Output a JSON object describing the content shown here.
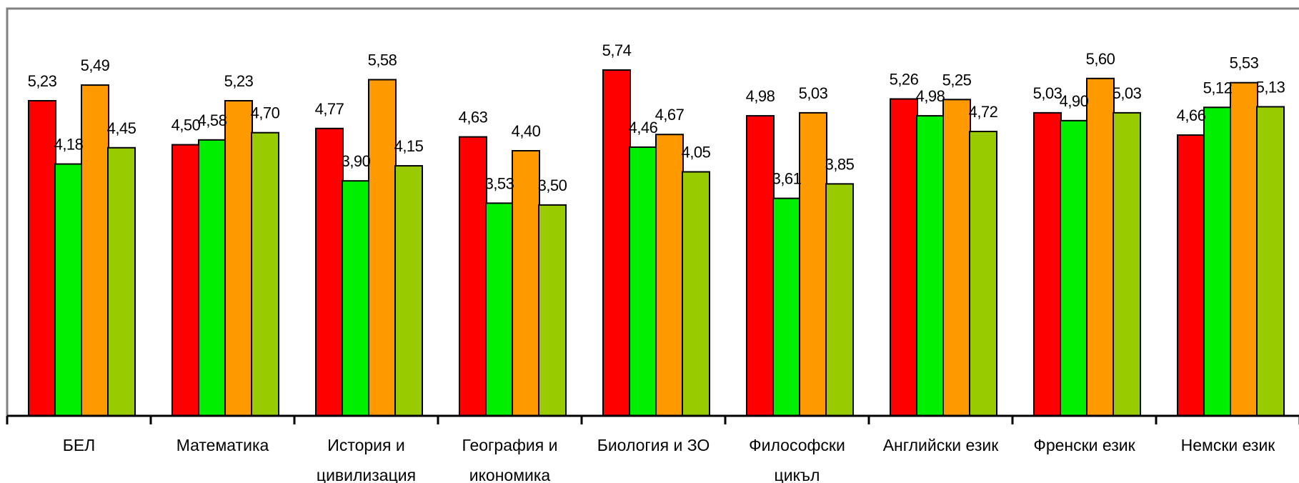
{
  "chart_data": {
    "type": "bar",
    "categories": [
      [
        "БЕЛ"
      ],
      [
        "Математика"
      ],
      [
        "История и",
        "цивилизация"
      ],
      [
        "География и",
        "икономика"
      ],
      [
        "Биология и ЗО"
      ],
      [
        "Философски",
        "цикъл"
      ],
      [
        "Английски език"
      ],
      [
        "Френски език"
      ],
      [
        "Немски език"
      ]
    ],
    "series": [
      {
        "color": "#ff0000",
        "values": [
          5.23,
          4.5,
          4.77,
          4.63,
          5.74,
          4.98,
          5.26,
          5.03,
          4.66
        ]
      },
      {
        "color": "#00ee00",
        "values": [
          4.18,
          4.58,
          3.9,
          3.53,
          4.46,
          3.61,
          4.98,
          4.9,
          5.12
        ]
      },
      {
        "color": "#ff9900",
        "values": [
          5.49,
          5.23,
          5.58,
          4.4,
          4.67,
          5.03,
          5.25,
          5.6,
          5.53
        ]
      },
      {
        "color": "#99cc00",
        "values": [
          4.45,
          4.7,
          4.15,
          3.5,
          4.05,
          3.85,
          4.72,
          5.03,
          5.13
        ]
      }
    ],
    "ylim": [
      0,
      6.0
    ],
    "decimal_separator": ",",
    "grid": false,
    "legend": "none"
  }
}
